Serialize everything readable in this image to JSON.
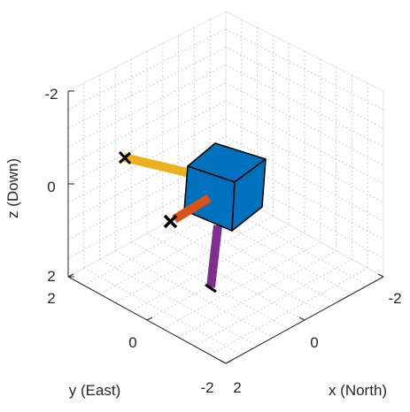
{
  "chart_data": {
    "type": "3d-vector",
    "xlabel": "x (North)",
    "ylabel": "y (East)",
    "zlabel": "z (Down)",
    "xlim": [
      -2,
      2
    ],
    "ylim": [
      -2,
      2
    ],
    "zlim": [
      -2,
      2
    ],
    "z_reversed": true,
    "x_ticks": [
      "-2",
      "0",
      "2"
    ],
    "y_ticks": [
      "2",
      "0",
      "-2"
    ],
    "z_ticks": [
      "-2",
      "0",
      "2"
    ],
    "grid": "dotted-major-and-minor",
    "body": {
      "shape": "cube",
      "center": [
        0,
        0,
        0
      ],
      "color": "#0072BD"
    },
    "vectors": [
      {
        "direction": "+y",
        "color": "#EDB120"
      },
      {
        "direction": "+x",
        "color": "#D95319"
      },
      {
        "direction": "+z",
        "color": "#7E2F8E"
      }
    ]
  }
}
